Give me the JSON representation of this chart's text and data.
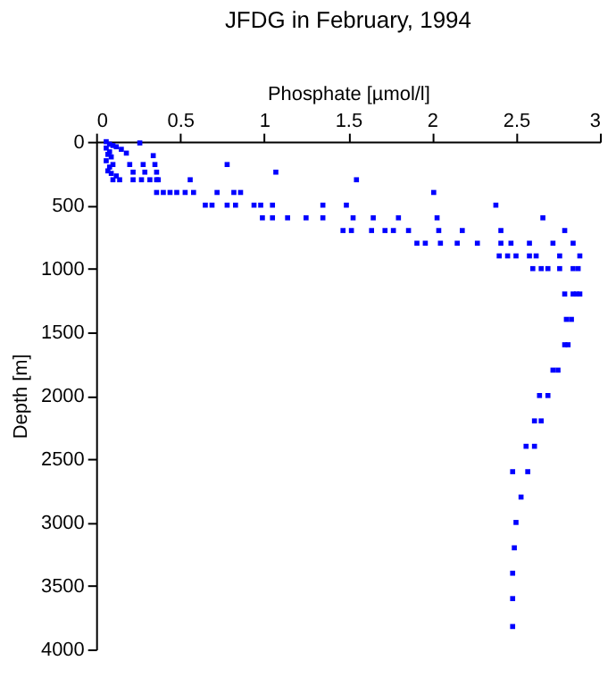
{
  "chart_data": {
    "type": "scatter",
    "title": "JFDG in February, 1994",
    "xlabel": "Phosphate [µmol/l]",
    "ylabel": "Depth [m]",
    "marker": "square",
    "grid": false,
    "xlim": [
      0,
      3
    ],
    "xticks": [
      0,
      0.5,
      1,
      1.5,
      2,
      2.5,
      3
    ],
    "ylim": [
      4000,
      0
    ],
    "yticks": [
      0,
      500,
      1000,
      1500,
      2000,
      2500,
      3000,
      3500,
      4000
    ],
    "series": [
      {
        "color": "#0000ff",
        "x": [
          0.06,
          0.08,
          0.1,
          0.06,
          0.08,
          0.07,
          0.09,
          0.06,
          0.1,
          0.08,
          0.07,
          0.09,
          0.12,
          0.1,
          0.12,
          0.15,
          0.18,
          0.26,
          0.2,
          0.28,
          0.14,
          0.22,
          0.29,
          0.22,
          0.27,
          0.32,
          0.36,
          0.34,
          0.35,
          0.36,
          0.37,
          0.36,
          0.4,
          0.44,
          0.48,
          0.53,
          0.58,
          0.56,
          0.78,
          0.72,
          0.82,
          0.86,
          1.07,
          1.55,
          0.65,
          0.69,
          0.78,
          0.83,
          0.94,
          0.98,
          1.05,
          1.35,
          1.49,
          2.38,
          2.01,
          0.99,
          1.05,
          1.14,
          1.25,
          1.35,
          1.53,
          1.65,
          1.8,
          2.03,
          2.66,
          1.47,
          1.52,
          1.64,
          1.72,
          1.77,
          1.86,
          2.04,
          2.18,
          2.41,
          2.79,
          1.91,
          1.96,
          2.05,
          2.15,
          2.27,
          2.41,
          2.47,
          2.58,
          2.72,
          2.84,
          2.4,
          2.45,
          2.5,
          2.58,
          2.62,
          2.76,
          2.88,
          2.6,
          2.65,
          2.69,
          2.76,
          2.84,
          2.87,
          2.79,
          2.84,
          2.86,
          2.88,
          2.8,
          2.83,
          2.79,
          2.81,
          2.72,
          2.75,
          2.64,
          2.69,
          2.61,
          2.65,
          2.56,
          2.61,
          2.48,
          2.57,
          2.53,
          2.5,
          2.49,
          2.48,
          2.48,
          2.48
        ],
        "values": [
          0,
          20,
          30,
          50,
          80,
          100,
          120,
          150,
          180,
          200,
          230,
          250,
          270,
          300,
          40,
          60,
          90,
          10,
          180,
          180,
          300,
          240,
          240,
          300,
          300,
          300,
          300,
          110,
          180,
          240,
          300,
          400,
          400,
          400,
          400,
          400,
          400,
          300,
          180,
          400,
          400,
          400,
          240,
          300,
          500,
          500,
          500,
          500,
          500,
          500,
          500,
          500,
          500,
          500,
          400,
          600,
          600,
          600,
          600,
          600,
          600,
          600,
          600,
          600,
          600,
          700,
          700,
          700,
          700,
          700,
          700,
          700,
          700,
          700,
          700,
          800,
          800,
          800,
          800,
          800,
          800,
          800,
          800,
          800,
          800,
          900,
          900,
          900,
          900,
          900,
          900,
          900,
          1000,
          1000,
          1000,
          1000,
          1000,
          1000,
          1200,
          1200,
          1200,
          1200,
          1400,
          1400,
          1600,
          1600,
          1800,
          1800,
          2000,
          2000,
          2200,
          2200,
          2400,
          2400,
          2600,
          2600,
          2800,
          3000,
          3200,
          3400,
          3600,
          3820
        ]
      }
    ]
  }
}
